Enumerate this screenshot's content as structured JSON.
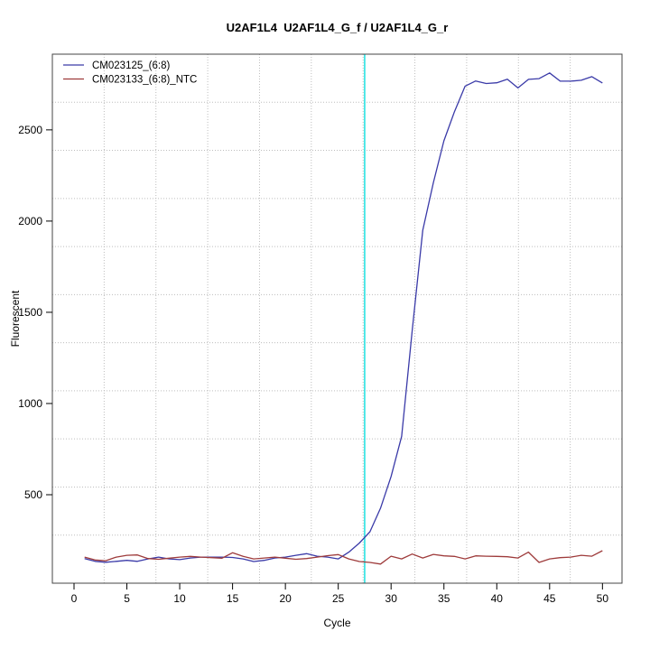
{
  "page": {
    "background": "#ffffff"
  },
  "chart_data": {
    "type": "line",
    "title": "U2AF1L4  U2AF1L4_G_f / U2AF1L4_G_r",
    "xlabel": "Cycle",
    "ylabel": "Fluorescent",
    "xlim": [
      -2.05,
      51.85
    ],
    "ylim": [
      15,
      2915
    ],
    "x_ticks": [
      0,
      5,
      10,
      15,
      20,
      25,
      30,
      35,
      40,
      45,
      50
    ],
    "y_ticks": [
      500,
      1000,
      1500,
      2000,
      2500
    ],
    "grid": {
      "nx": 11,
      "ny": 11,
      "color": "#bdbdbd",
      "style": "dotted"
    },
    "threshold_line": {
      "x": 27.5,
      "color": "#2ae2e2"
    },
    "legend": {
      "position": "top-left"
    },
    "x": [
      1,
      2,
      3,
      4,
      5,
      6,
      7,
      8,
      9,
      10,
      11,
      12,
      13,
      14,
      15,
      16,
      17,
      18,
      19,
      20,
      21,
      22,
      23,
      24,
      25,
      26,
      27,
      28,
      29,
      30,
      31,
      32,
      33,
      34,
      35,
      36,
      37,
      38,
      39,
      40,
      41,
      42,
      43,
      44,
      45,
      46,
      47,
      48,
      49,
      50
    ],
    "series": [
      {
        "name": "CM023125_(6:8)",
        "color": "#3a3aa8",
        "values": [
          150,
          135,
          130,
          135,
          140,
          135,
          148,
          158,
          148,
          144,
          153,
          158,
          158,
          158,
          156,
          148,
          134,
          140,
          153,
          158,
          168,
          177,
          163,
          158,
          148,
          185,
          235,
          297,
          426,
          600,
          820,
          1400,
          1950,
          2210,
          2440,
          2600,
          2740,
          2768,
          2754,
          2758,
          2778,
          2730,
          2777,
          2781,
          2812,
          2767,
          2767,
          2772,
          2792,
          2757
        ]
      },
      {
        "name": "CM023133_(6:8)_NTC",
        "color": "#9e3b3b",
        "values": [
          158,
          142,
          138,
          158,
          168,
          170,
          150,
          146,
          152,
          158,
          162,
          158,
          155,
          152,
          182,
          162,
          148,
          153,
          158,
          152,
          146,
          150,
          158,
          166,
          172,
          148,
          134,
          129,
          120,
          163,
          148,
          175,
          153,
          173,
          165,
          162,
          148,
          165,
          163,
          162,
          160,
          153,
          185,
          129,
          148,
          155,
          158,
          168,
          163,
          193
        ]
      }
    ]
  }
}
